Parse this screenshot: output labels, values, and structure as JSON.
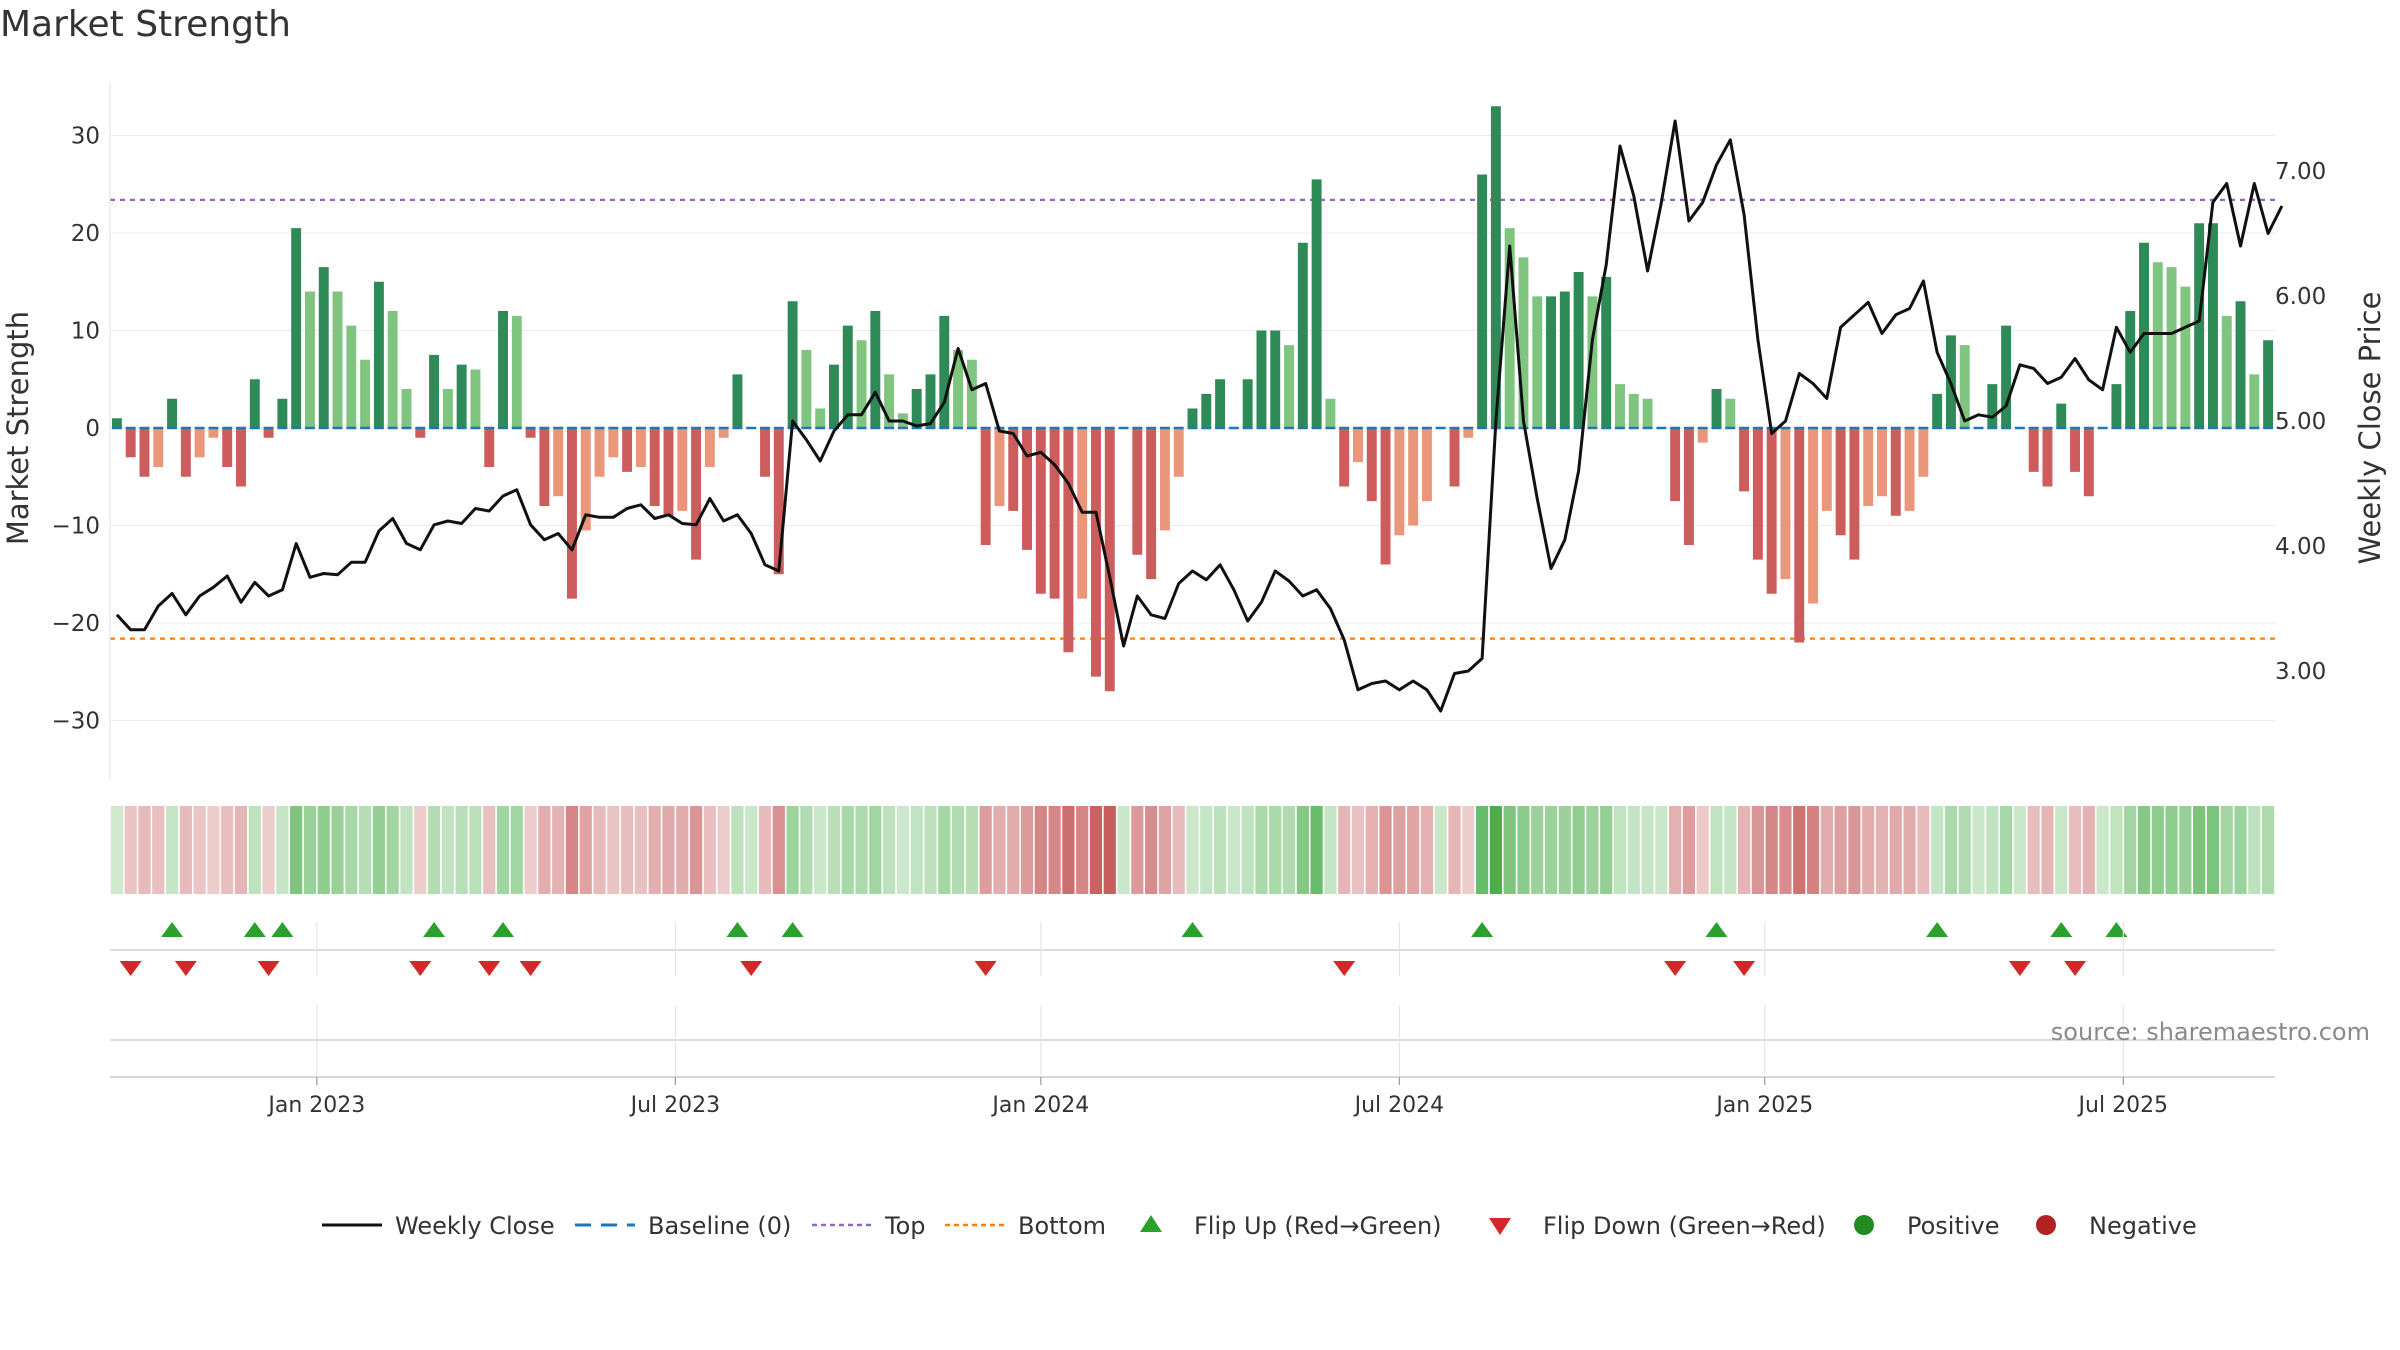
{
  "title": "Market Strength",
  "source": "source: sharemaestro.com",
  "colors": {
    "pos_strong": "#2e8b57",
    "pos_weak": "#7fc47f",
    "neg_strong": "#cd5c5c",
    "neg_weak": "#e9967a",
    "close": "#111111",
    "baseline": "#1f77b4",
    "top": "#9467bd",
    "bottom": "#ff7f0e",
    "flip_up": "#2ca02c",
    "flip_down": "#d62728",
    "positive": "#228b22",
    "negative": "#b22222"
  },
  "chart_data": {
    "type": "bar",
    "ylabel": "Market Strength",
    "y2label": "Weekly Close Price",
    "ylim": [
      -36,
      36
    ],
    "y2lim": [
      2.2,
      7.7
    ],
    "yticks": [
      30,
      20,
      10,
      0,
      -10,
      -20,
      -30
    ],
    "ytick_labels": [
      "30",
      "20",
      "10",
      "0",
      "−10",
      "−20",
      "−30"
    ],
    "y2ticks": [
      7.0,
      6.0,
      5.0,
      4.0,
      3.0
    ],
    "y2tick_labels": [
      "7.00",
      "6.00",
      "5.00",
      "4.00",
      "3.00"
    ],
    "top_line": 23.4,
    "bottom_line": -21.6,
    "xticks": [
      {
        "label": "Jan 2023",
        "week": 15
      },
      {
        "label": "Jul 2023",
        "week": 41
      },
      {
        "label": "Jan 2024",
        "week": 67.5
      },
      {
        "label": "Jul 2024",
        "week": 93.5
      },
      {
        "label": "Jan 2025",
        "week": 120
      },
      {
        "label": "Jul 2025",
        "week": 146
      }
    ],
    "strength": [
      1,
      -3,
      -5,
      -4,
      3,
      -5,
      -3,
      -1,
      -4,
      -6,
      5,
      -1,
      3,
      20.5,
      14,
      16.5,
      14,
      10.5,
      7,
      15,
      12,
      4,
      -1,
      7.5,
      4,
      6.5,
      6,
      -4,
      12,
      11.5,
      -1,
      -8,
      -7,
      -17.5,
      -10.5,
      -5,
      -3,
      -4.5,
      -4,
      -8,
      -9,
      -8.5,
      -13.5,
      -4,
      -1,
      5.5,
      0,
      -5,
      -15,
      13,
      8,
      2,
      6.5,
      10.5,
      9,
      12,
      5.5,
      1.5,
      4,
      5.5,
      11.5,
      8,
      7,
      -12,
      -8,
      -8.5,
      -12.5,
      -17,
      -17.5,
      -23,
      -17.5,
      -25.5,
      -27,
      0,
      -13,
      -15.5,
      -10.5,
      -5,
      2,
      3.5,
      5,
      0,
      5,
      10,
      10,
      8.5,
      19,
      25.5,
      3,
      -6,
      -3.5,
      -7.5,
      -14,
      -11,
      -10,
      -7.5,
      0,
      -6,
      -1,
      26,
      33,
      20.5,
      17.5,
      13.5,
      13.5,
      14,
      16,
      13.5,
      15.5,
      4.5,
      3.5,
      3,
      0,
      -7.5,
      -12,
      -1.5,
      4,
      3,
      -6.5,
      -13.5,
      -17,
      -15.5,
      -22,
      -18,
      -8.5,
      -11,
      -13.5,
      -8,
      -7,
      -9,
      -8.5,
      -5,
      3.5,
      9.5,
      8.5,
      0,
      4.5,
      10.5,
      0,
      -4.5,
      -6,
      2.5,
      -4.5,
      -7,
      0,
      4.5,
      12,
      19,
      17,
      16.5,
      14.5,
      21,
      21,
      11.5,
      13,
      5.5,
      9
    ],
    "close": [
      3.45,
      3.33,
      3.33,
      3.52,
      3.62,
      3.45,
      3.6,
      3.67,
      3.76,
      3.55,
      3.71,
      3.6,
      3.65,
      4.02,
      3.75,
      3.78,
      3.77,
      3.87,
      3.87,
      4.12,
      4.22,
      4.02,
      3.97,
      4.17,
      4.2,
      4.18,
      4.3,
      4.28,
      4.4,
      4.45,
      4.17,
      4.05,
      4.1,
      3.97,
      4.25,
      4.23,
      4.23,
      4.3,
      4.33,
      4.22,
      4.25,
      4.18,
      4.17,
      4.38,
      4.2,
      4.25,
      4.1,
      3.85,
      3.8,
      5.0,
      4.85,
      4.68,
      4.92,
      5.05,
      5.05,
      5.23,
      5.0,
      5.0,
      4.96,
      4.98,
      5.15,
      5.58,
      5.25,
      5.3,
      4.92,
      4.9,
      4.72,
      4.75,
      4.65,
      4.5,
      4.27,
      4.27,
      3.75,
      3.2,
      3.6,
      3.45,
      3.42,
      3.7,
      3.8,
      3.73,
      3.85,
      3.65,
      3.4,
      3.55,
      3.8,
      3.72,
      3.6,
      3.65,
      3.5,
      3.25,
      2.85,
      2.9,
      2.92,
      2.85,
      2.92,
      2.85,
      2.68,
      2.98,
      3.0,
      3.1,
      5.0,
      6.4,
      5.0,
      4.38,
      3.82,
      4.05,
      4.6,
      5.65,
      6.25,
      7.2,
      6.8,
      6.2,
      6.75,
      7.4,
      6.6,
      6.75,
      7.05,
      7.25,
      6.65,
      5.65,
      4.9,
      5.0,
      5.38,
      5.3,
      5.18,
      5.75,
      5.85,
      5.95,
      5.7,
      5.85,
      5.9,
      6.12,
      5.55,
      5.3,
      5.0,
      5.05,
      5.03,
      5.12,
      5.45,
      5.42,
      5.3,
      5.35,
      5.5,
      5.33,
      5.25,
      5.75,
      5.55,
      5.7,
      5.7,
      5.7,
      5.75,
      5.8,
      6.75,
      6.9,
      6.4,
      6.9,
      6.5,
      6.72
    ],
    "flip_up_weeks": [
      4,
      10,
      12,
      23,
      28,
      45,
      49,
      78,
      99,
      116,
      132,
      141,
      145
    ],
    "flip_down_weeks": [
      1,
      5,
      11,
      22,
      27,
      30,
      46,
      63,
      89,
      113,
      118,
      138,
      142
    ]
  },
  "legend": {
    "items": [
      {
        "key": "close",
        "label": "Weekly Close"
      },
      {
        "key": "baseline",
        "label": "Baseline (0)"
      },
      {
        "key": "top",
        "label": "Top"
      },
      {
        "key": "bottom",
        "label": "Bottom"
      },
      {
        "key": "flip_up",
        "label": "Flip Up (Red→Green)"
      },
      {
        "key": "flip_down",
        "label": "Flip Down (Green→Red)"
      },
      {
        "key": "positive",
        "label": "Positive"
      },
      {
        "key": "negative",
        "label": "Negative"
      }
    ]
  }
}
